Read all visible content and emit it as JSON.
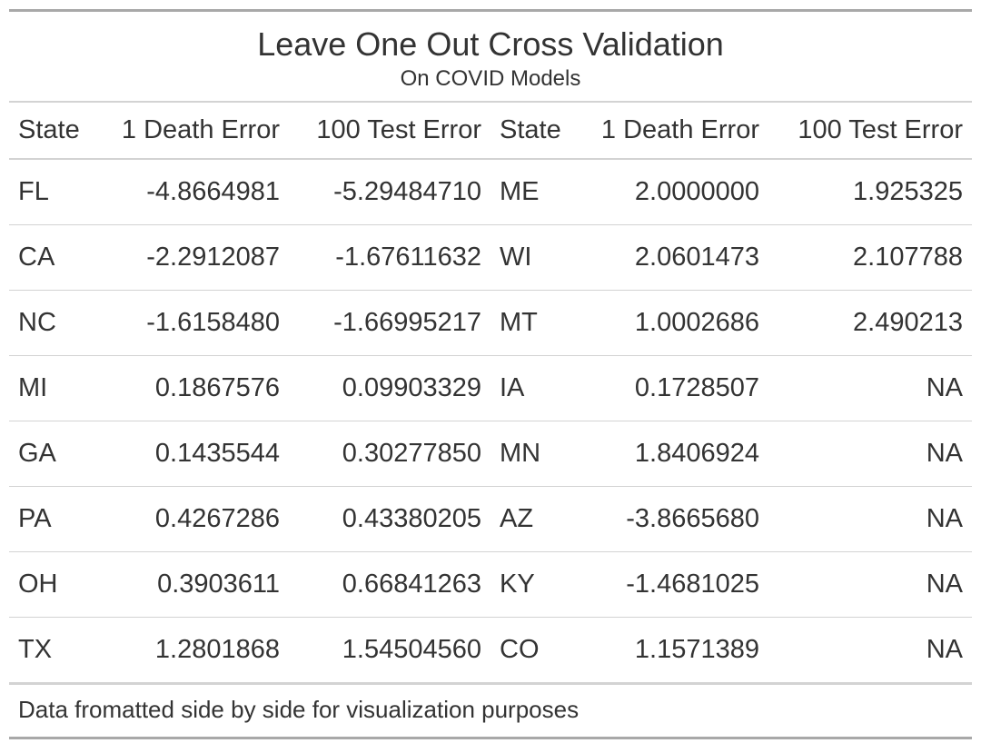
{
  "title": "Leave One Out Cross Validation",
  "subtitle": "On COVID Models",
  "columns": [
    "State",
    "1 Death Error",
    "100 Test Error",
    "State",
    "1 Death Error",
    "100 Test Error"
  ],
  "rows": [
    [
      "FL",
      "-4.8664981",
      "-5.29484710",
      "ME",
      "2.0000000",
      "1.925325"
    ],
    [
      "CA",
      "-2.2912087",
      "-1.67611632",
      "WI",
      "2.0601473",
      "2.107788"
    ],
    [
      "NC",
      "-1.6158480",
      "-1.66995217",
      "MT",
      "1.0002686",
      "2.490213"
    ],
    [
      "MI",
      "0.1867576",
      "0.09903329",
      "IA",
      "0.1728507",
      "NA"
    ],
    [
      "GA",
      "0.1435544",
      "0.30277850",
      "MN",
      "1.8406924",
      "NA"
    ],
    [
      "PA",
      "0.4267286",
      "0.43380205",
      "AZ",
      "-3.8665680",
      "NA"
    ],
    [
      "OH",
      "0.3903611",
      "0.66841263",
      "KY",
      "-1.4681025",
      "NA"
    ],
    [
      "TX",
      "1.2801868",
      "1.54504560",
      "CO",
      "1.1571389",
      "NA"
    ]
  ],
  "footnote": "Data fromatted side by side for visualization purposes",
  "colors": {
    "text": "#333333",
    "rule_dark": "#a8a8a8",
    "rule_light": "#d3d3d3"
  }
}
